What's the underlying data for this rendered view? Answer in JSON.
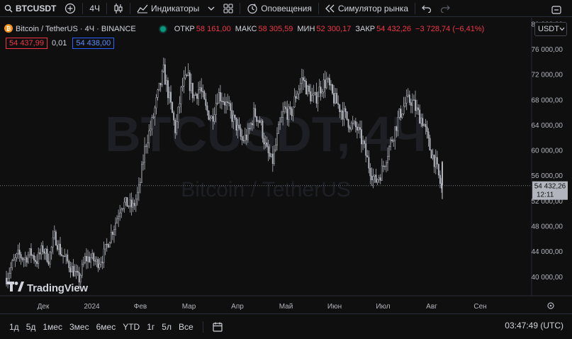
{
  "toolbar": {
    "symbol": "BTCUSDT",
    "interval": "4Ч",
    "indicators_label": "Индикаторы",
    "alerts_label": "Оповещения",
    "replay_label": "Симулятор рынка"
  },
  "legend": {
    "title": "Bitcoin / TetherUS · 4Ч · BINANCE",
    "open_label": "ОТКР",
    "open_value": "58 161,00",
    "high_label": "МАКС",
    "high_value": "58 305,59",
    "low_label": "МИН",
    "low_value": "52 300,17",
    "close_label": "ЗАКР",
    "close_value": "54 432,26",
    "change_value": "−3 728,74 (−6,41%)"
  },
  "quote": {
    "sell": "54 437,99",
    "spread": "0,01",
    "buy": "54 438,00"
  },
  "currency": "USDT",
  "watermark": {
    "symbol": "BTCUSDT, 4Ч",
    "name": "Bitcoin / TetherUS"
  },
  "brand": "TradingView",
  "last_price": {
    "value": "54 432,26",
    "countdown": "12:11"
  },
  "bottombar": {
    "ranges": [
      "1д",
      "5д",
      "1мес",
      "3мес",
      "6мес",
      "YTD",
      "1г",
      "5л",
      "Все"
    ],
    "clock": "03:47:49 (UTC)"
  },
  "colors": {
    "background": "#0f0f0f",
    "candles": "#b2b5be",
    "down": "#f23645",
    "buy": "#2962ff",
    "live": "#089981"
  },
  "chart_data": {
    "type": "line",
    "title": "Bitcoin / TetherUS · 4Ч · BINANCE",
    "y_axis_position": "right",
    "ylim": [
      37000,
      81000
    ],
    "y_ticks": [
      40000,
      44000,
      48000,
      52000,
      56000,
      60000,
      64000,
      68000,
      72000,
      76000,
      80000
    ],
    "y_tick_labels": [
      "40 000,00",
      "44 000,00",
      "48 000,00",
      "52 000,00",
      "56 000,00",
      "60 000,00",
      "64 000,00",
      "68 000,00",
      "72 000,00",
      "76 000,00",
      "80 000,00"
    ],
    "x_tick_labels": [
      "Дек",
      "2024",
      "Фев",
      "Мар",
      "Апр",
      "Май",
      "Июн",
      "Июл",
      "Авг",
      "Сен"
    ],
    "grid": false,
    "last_value": 54432.26,
    "series": [
      {
        "values": [
          39800,
          42000,
          43500,
          42800,
          43800,
          42500,
          44500,
          42800,
          46500,
          43800,
          42500,
          41000,
          39500,
          42800,
          43000,
          42200,
          43200,
          46000,
          48500,
          51500,
          51500,
          51000,
          54000,
          61000,
          64000,
          68500,
          72500,
          68000,
          63000,
          70000,
          71500,
          68500,
          70000,
          66500,
          65000,
          69000,
          68000,
          66000,
          64000,
          61500,
          62500,
          66000,
          64500,
          60000,
          58000,
          63000,
          66500,
          65500,
          69000,
          71500,
          69000,
          68000,
          70000,
          71000,
          68500,
          67000,
          65500,
          64000,
          63500,
          61000,
          57500,
          55000,
          56500,
          59500,
          62500,
          65500,
          67500,
          68000,
          66000,
          64500,
          60500,
          58000,
          53800
        ]
      }
    ]
  }
}
